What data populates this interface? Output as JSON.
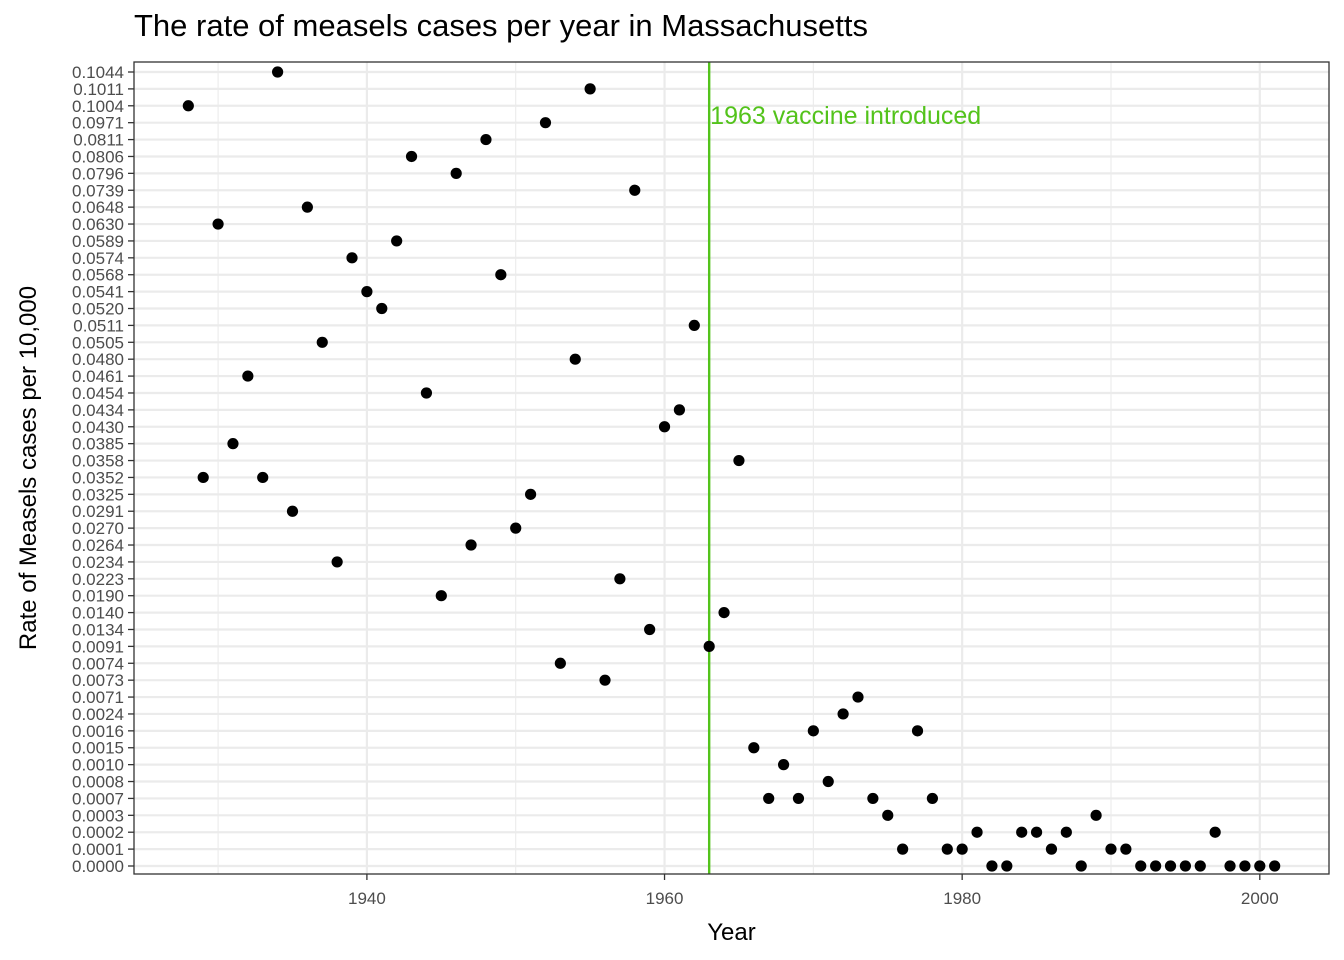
{
  "chart_data": {
    "type": "scatter",
    "title": "The rate of measels cases per year in Massachusetts",
    "xlabel": "Year",
    "ylabel": "Rate of Measels cases per 10,000",
    "xlim": [
      1924.35,
      2004.65
    ],
    "x_ticks": [
      1940,
      1960,
      1980,
      2000
    ],
    "y_scale": "categorical (discrete rate labels in ascending order)",
    "y_categories": [
      "0.0000",
      "0.0001",
      "0.0002",
      "0.0003",
      "0.0007",
      "0.0008",
      "0.0010",
      "0.0015",
      "0.0016",
      "0.0024",
      "0.0071",
      "0.0073",
      "0.0074",
      "0.0091",
      "0.0134",
      "0.0140",
      "0.0190",
      "0.0223",
      "0.0234",
      "0.0264",
      "0.0270",
      "0.0291",
      "0.0325",
      "0.0352",
      "0.0358",
      "0.0385",
      "0.0430",
      "0.0434",
      "0.0454",
      "0.0461",
      "0.0480",
      "0.0505",
      "0.0511",
      "0.0520",
      "0.0541",
      "0.0568",
      "0.0574",
      "0.0589",
      "0.0630",
      "0.0648",
      "0.0739",
      "0.0796",
      "0.0806",
      "0.0811",
      "0.0971",
      "0.1004",
      "0.1011",
      "0.1044"
    ],
    "grid": true,
    "points": [
      {
        "x": 1928,
        "y": "0.1004"
      },
      {
        "x": 1929,
        "y": "0.0352"
      },
      {
        "x": 1930,
        "y": "0.0630"
      },
      {
        "x": 1931,
        "y": "0.0385"
      },
      {
        "x": 1932,
        "y": "0.0461"
      },
      {
        "x": 1933,
        "y": "0.0352"
      },
      {
        "x": 1934,
        "y": "0.1044"
      },
      {
        "x": 1935,
        "y": "0.0291"
      },
      {
        "x": 1936,
        "y": "0.0648"
      },
      {
        "x": 1937,
        "y": "0.0505"
      },
      {
        "x": 1938,
        "y": "0.0234"
      },
      {
        "x": 1939,
        "y": "0.0574"
      },
      {
        "x": 1940,
        "y": "0.0541"
      },
      {
        "x": 1941,
        "y": "0.0520"
      },
      {
        "x": 1942,
        "y": "0.0589"
      },
      {
        "x": 1943,
        "y": "0.0806"
      },
      {
        "x": 1944,
        "y": "0.0454"
      },
      {
        "x": 1945,
        "y": "0.0190"
      },
      {
        "x": 1946,
        "y": "0.0796"
      },
      {
        "x": 1947,
        "y": "0.0264"
      },
      {
        "x": 1948,
        "y": "0.0811"
      },
      {
        "x": 1949,
        "y": "0.0568"
      },
      {
        "x": 1950,
        "y": "0.0270"
      },
      {
        "x": 1951,
        "y": "0.0325"
      },
      {
        "x": 1952,
        "y": "0.0971"
      },
      {
        "x": 1953,
        "y": "0.0074"
      },
      {
        "x": 1954,
        "y": "0.0480"
      },
      {
        "x": 1955,
        "y": "0.1011"
      },
      {
        "x": 1956,
        "y": "0.0073"
      },
      {
        "x": 1957,
        "y": "0.0223"
      },
      {
        "x": 1958,
        "y": "0.0739"
      },
      {
        "x": 1959,
        "y": "0.0134"
      },
      {
        "x": 1960,
        "y": "0.0430"
      },
      {
        "x": 1961,
        "y": "0.0434"
      },
      {
        "x": 1962,
        "y": "0.0511"
      },
      {
        "x": 1963,
        "y": "0.0091"
      },
      {
        "x": 1964,
        "y": "0.0140"
      },
      {
        "x": 1965,
        "y": "0.0358"
      },
      {
        "x": 1966,
        "y": "0.0015"
      },
      {
        "x": 1967,
        "y": "0.0007"
      },
      {
        "x": 1968,
        "y": "0.0010"
      },
      {
        "x": 1969,
        "y": "0.0007"
      },
      {
        "x": 1970,
        "y": "0.0016"
      },
      {
        "x": 1971,
        "y": "0.0008"
      },
      {
        "x": 1972,
        "y": "0.0024"
      },
      {
        "x": 1973,
        "y": "0.0071"
      },
      {
        "x": 1974,
        "y": "0.0007"
      },
      {
        "x": 1975,
        "y": "0.0003"
      },
      {
        "x": 1976,
        "y": "0.0001"
      },
      {
        "x": 1977,
        "y": "0.0016"
      },
      {
        "x": 1978,
        "y": "0.0007"
      },
      {
        "x": 1979,
        "y": "0.0001"
      },
      {
        "x": 1980,
        "y": "0.0001"
      },
      {
        "x": 1981,
        "y": "0.0002"
      },
      {
        "x": 1982,
        "y": "0.0000"
      },
      {
        "x": 1983,
        "y": "0.0000"
      },
      {
        "x": 1984,
        "y": "0.0002"
      },
      {
        "x": 1985,
        "y": "0.0002"
      },
      {
        "x": 1986,
        "y": "0.0001"
      },
      {
        "x": 1987,
        "y": "0.0002"
      },
      {
        "x": 1988,
        "y": "0.0000"
      },
      {
        "x": 1989,
        "y": "0.0003"
      },
      {
        "x": 1990,
        "y": "0.0001"
      },
      {
        "x": 1991,
        "y": "0.0001"
      },
      {
        "x": 1992,
        "y": "0.0000"
      },
      {
        "x": 1993,
        "y": "0.0000"
      },
      {
        "x": 1994,
        "y": "0.0000"
      },
      {
        "x": 1995,
        "y": "0.0000"
      },
      {
        "x": 1996,
        "y": "0.0000"
      },
      {
        "x": 1997,
        "y": "0.0002"
      },
      {
        "x": 1998,
        "y": "0.0000"
      },
      {
        "x": 1999,
        "y": "0.0000"
      },
      {
        "x": 2000,
        "y": "0.0000"
      },
      {
        "x": 2001,
        "y": "0.0000"
      }
    ],
    "vline": {
      "x": 1963,
      "color": "#53c31b",
      "label": "1963 vaccine introduced"
    },
    "colors": {
      "points": "#000000",
      "grid": "#ebebeb",
      "panel_border": "#333333",
      "annotation": "#53c31b"
    }
  }
}
